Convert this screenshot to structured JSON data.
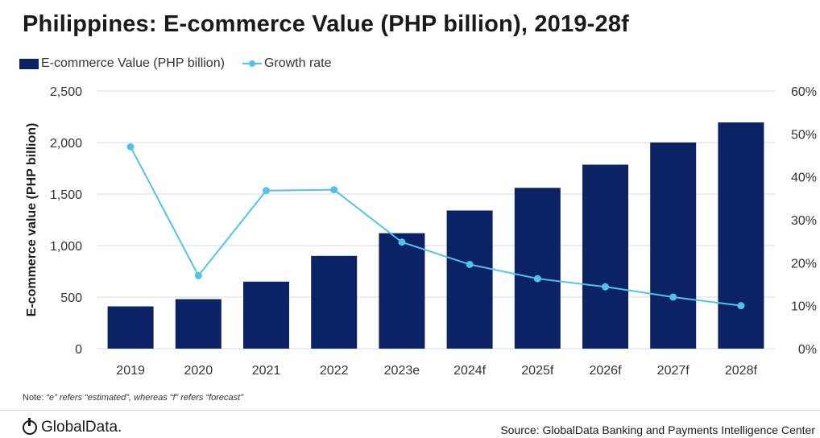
{
  "title": "Philippines: E-commerce Value (PHP billion), 2019-28f",
  "legend": {
    "bar_label": "E-commerce Value (PHP billion)",
    "line_label": "Growth rate"
  },
  "note": {
    "prefix": "Note:",
    "text": "“e” refers “estimated”, whereas “f” refers “forecast”"
  },
  "footer": {
    "logo_text": "GlobalData.",
    "source": "Source: GlobalData Banking and Payments Intelligence Center"
  },
  "colors": {
    "bar": "#0b2265",
    "line": "#4fc3e8",
    "grid": "#d9d9d9",
    "text": "#333333"
  },
  "chart_data": {
    "type": "bar",
    "categories": [
      "2019",
      "2020",
      "2021",
      "2022",
      "2023e",
      "2024f",
      "2025f",
      "2026f",
      "2027f",
      "2028f"
    ],
    "series": [
      {
        "name": "E-commerce Value (PHP billion)",
        "type": "bar",
        "axis": "left",
        "values": [
          410,
          480,
          650,
          900,
          1120,
          1340,
          1560,
          1785,
          2000,
          2195
        ]
      },
      {
        "name": "Growth rate",
        "type": "line",
        "axis": "right",
        "values": [
          47,
          17,
          36.8,
          37,
          24.8,
          19.6,
          16.3,
          14.4,
          12,
          10
        ]
      }
    ],
    "ylabel": "E-commerce value (PHP billion)",
    "ylim": [
      0,
      2500
    ],
    "yticks": [
      "0",
      "500",
      "1,000",
      "1,500",
      "2,000",
      "2,500"
    ],
    "ytick_values": [
      0,
      500,
      1000,
      1500,
      2000,
      2500
    ],
    "y2lim": [
      0,
      60
    ],
    "y2ticks": [
      "0%",
      "10%",
      "20%",
      "30%",
      "40%",
      "50%",
      "60%"
    ],
    "y2tick_values": [
      0,
      10,
      20,
      30,
      40,
      50,
      60
    ],
    "grid": true,
    "legend_position": "top-left"
  }
}
